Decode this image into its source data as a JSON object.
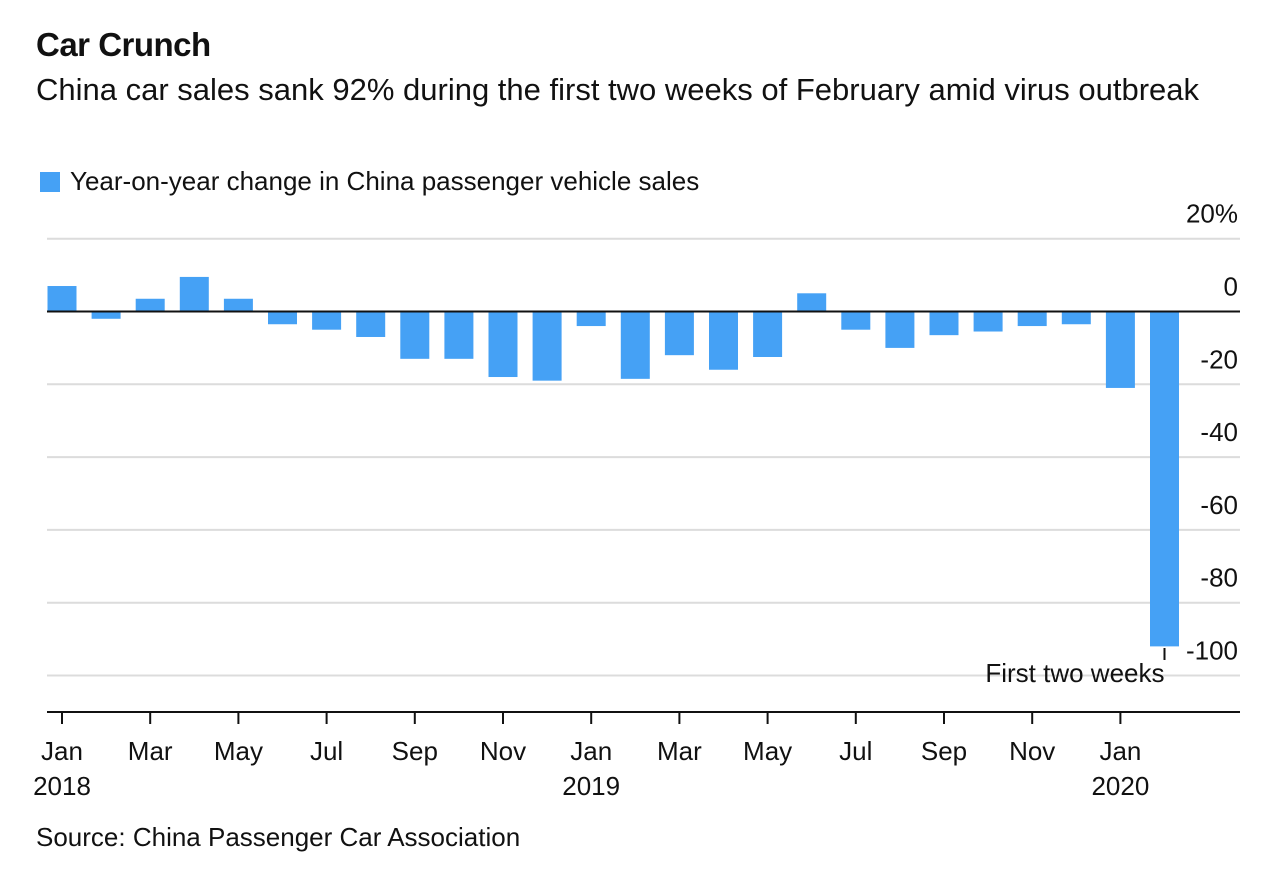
{
  "title": "Car Crunch",
  "subtitle": "China car sales sank 92% during the first two weeks of February amid virus outbreak",
  "source": "Source: China Passenger Car Association",
  "colors": {
    "bar": "#45a1f5",
    "grid": "#dcdcdc",
    "axis": "#111111"
  },
  "chart_data": {
    "type": "bar",
    "title": "Car Crunch",
    "subtitle": "China car sales sank 92% during the first two weeks of February amid virus outbreak",
    "legend": "top-left",
    "series": [
      {
        "name": "Year-on-year change in China passenger vehicle sales",
        "categories": [
          "Jan 2018",
          "Feb 2018",
          "Mar 2018",
          "Apr 2018",
          "May 2018",
          "Jun 2018",
          "Jul 2018",
          "Aug 2018",
          "Sep 2018",
          "Oct 2018",
          "Nov 2018",
          "Dec 2018",
          "Jan 2019",
          "Feb 2019",
          "Mar 2019",
          "Apr 2019",
          "May 2019",
          "Jun 2019",
          "Jul 2019",
          "Aug 2019",
          "Sep 2019",
          "Oct 2019",
          "Nov 2019",
          "Dec 2019",
          "Jan 2020",
          "Feb 2020 (first two weeks)"
        ],
        "values": [
          7,
          -2,
          3.5,
          9.5,
          3.5,
          -3.5,
          -5,
          -7,
          -13,
          -13,
          -18,
          -19,
          -4,
          -18.5,
          -12,
          -16,
          -12.5,
          5,
          -5,
          -10,
          -6.5,
          -5.5,
          -4,
          -3.5,
          -21,
          -92
        ]
      }
    ],
    "y_ticks": [
      20,
      0,
      -20,
      -40,
      -60,
      -80,
      -100
    ],
    "y_tick_labels": [
      "20%",
      "0",
      "-20",
      "-40",
      "-60",
      "-80",
      "-100"
    ],
    "ylim": [
      -110,
      20
    ],
    "grid": true,
    "x_tick_labels": [
      {
        "month": "Jan",
        "year": "2018",
        "index": 0
      },
      {
        "month": "Mar",
        "year": "",
        "index": 2
      },
      {
        "month": "May",
        "year": "",
        "index": 4
      },
      {
        "month": "Jul",
        "year": "",
        "index": 6
      },
      {
        "month": "Sep",
        "year": "",
        "index": 8
      },
      {
        "month": "Nov",
        "year": "",
        "index": 10
      },
      {
        "month": "Jan",
        "year": "2019",
        "index": 12
      },
      {
        "month": "Mar",
        "year": "",
        "index": 14
      },
      {
        "month": "May",
        "year": "",
        "index": 16
      },
      {
        "month": "Jul",
        "year": "",
        "index": 18
      },
      {
        "month": "Sep",
        "year": "",
        "index": 20
      },
      {
        "month": "Nov",
        "year": "",
        "index": 22
      },
      {
        "month": "Jan",
        "year": "2020",
        "index": 24
      }
    ],
    "annotation": {
      "text": "First two weeks",
      "index": 25
    }
  }
}
